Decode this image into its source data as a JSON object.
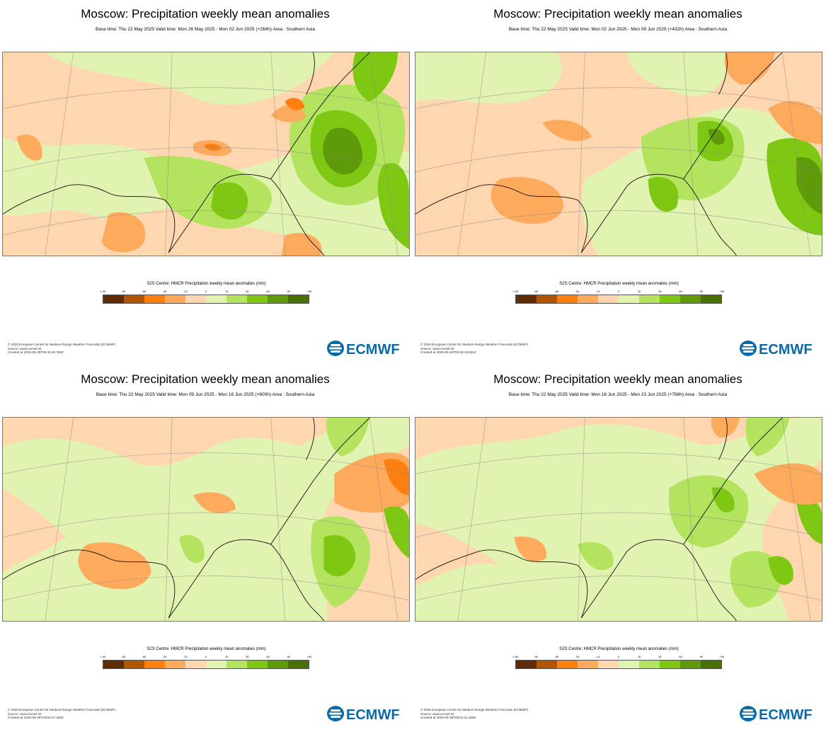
{
  "panels": [
    {
      "title": "Moscow: Precipitation weekly mean anomalies",
      "subtitle": "Base time: Thu 22 May 2025 Valid time: Mon 26 May 2025 - Mon 02 Jun 2025 (+264h) Area : Southern Asia",
      "legend_title": "S2S Centre: HMCR Precipitation weekly mean anomalies (mm)",
      "footer": [
        "© 2025 European Centre for Medium-Range Weather Forecasts (ECMWF)",
        "Source: www.ecmwf.int",
        "Created at 2025-05-28T09:49:49.769Z"
      ]
    },
    {
      "title": "Moscow: Precipitation weekly mean anomalies",
      "subtitle": "Base time: Thu 22 May 2025 Valid time: Mon 02 Jun 2025 - Mon 09 Jun 2025 (+432h) Area : Southern Asia",
      "legend_title": "S2S Centre: HMCR Precipitation weekly mean anomalies (mm)",
      "footer": [
        "© 2025 European Centre for Medium-Range Weather Forecasts (ECMWF)",
        "Source: www.ecmwf.int",
        "Created at 2025-05-28T09:50:19.501Z"
      ]
    },
    {
      "title": "Moscow: Precipitation weekly mean anomalies",
      "subtitle": "Base time: Thu 22 May 2025 Valid time: Mon 09 Jun 2025 - Mon 16 Jun 2025 (+600h) Area : Southern Asia",
      "legend_title": "S2S Centre: HMCR Precipitation weekly mean anomalies (mm)",
      "footer": [
        "© 2025 European Centre for Medium-Range Weather Forecasts (ECMWF)",
        "Source: www.ecmwf.int",
        "Created at 2025-05-28T09:50:47.468Z"
      ]
    },
    {
      "title": "Moscow: Precipitation weekly mean anomalies",
      "subtitle": "Base time: Thu 22 May 2025 Valid time: Mon 16 Jun 2025 - Mon 23 Jun 2025 (+768h) Area : Southern Asia",
      "legend_title": "S2S Centre: HMCR Precipitation weekly mean anomalies (mm)",
      "footer": [
        "© 2025 European Centre for Medium-Range Weather Forecasts (ECMWF)",
        "Source: www.ecmwf.int",
        "Created at 2025-05-28T09:51:11.436Z"
      ]
    }
  ],
  "legend": {
    "ticks": [
      "<-90",
      "-90",
      "-60",
      "-30",
      "-10",
      "0",
      "10",
      "30",
      "60",
      "90",
      ">90"
    ],
    "colors": [
      "#5e2c05",
      "#b05406",
      "#fd7f10",
      "#fdaa5c",
      "#fed6b0",
      "#e0f3b0",
      "#b3e35f",
      "#7ec813",
      "#5f9a0a",
      "#4a6f07"
    ]
  },
  "logo_text": "ECMWF",
  "colors": {
    "dry_strong": "#fd7f10",
    "dry": "#fdaa5c",
    "dry_light": "#fed6b0",
    "wet_light": "#e0f3b0",
    "wet": "#b3e35f",
    "wet_strong": "#7ec813",
    "wet_very": "#5f9a0a",
    "logo_blue": "#0a6aa8"
  }
}
